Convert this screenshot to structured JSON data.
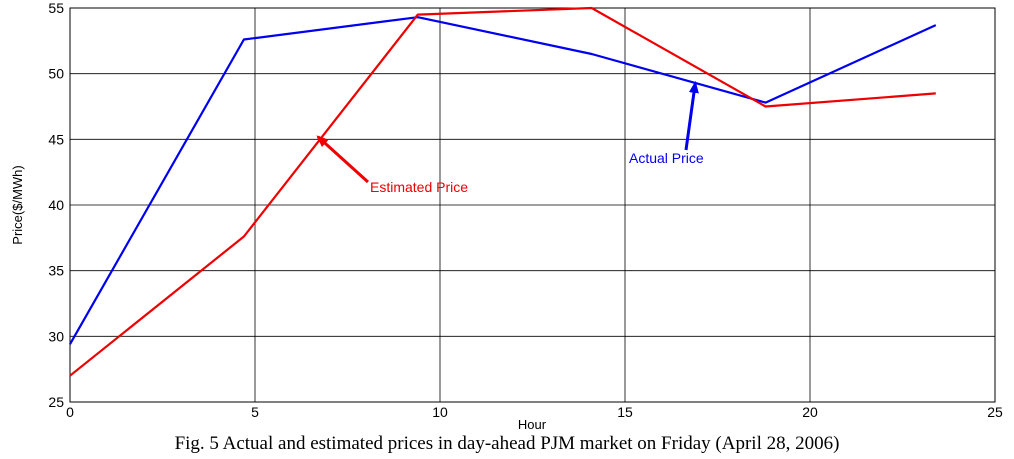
{
  "chart_data": {
    "type": "line",
    "xlabel": "Hour",
    "ylabel": "Price($/MWh)",
    "xlim": [
      0,
      25
    ],
    "ylim": [
      25,
      55
    ],
    "xticks": [
      0,
      5,
      10,
      15,
      20,
      25
    ],
    "yticks": [
      25,
      30,
      35,
      40,
      45,
      50,
      55
    ],
    "grid": true,
    "series": [
      {
        "name": "Actual Price",
        "color": "#0000ee",
        "points": [
          [
            0,
            29.4
          ],
          [
            4.7,
            52.6
          ],
          [
            9.4,
            54.3
          ],
          [
            14.1,
            51.5
          ],
          [
            18.8,
            47.8
          ],
          [
            23.4,
            53.7
          ]
        ]
      },
      {
        "name": "Estimated Price",
        "color": "#ee0000",
        "points": [
          [
            0,
            27.0
          ],
          [
            4.7,
            37.6
          ],
          [
            9.4,
            54.5
          ],
          [
            14.1,
            55.0
          ],
          [
            18.8,
            47.5
          ],
          [
            23.4,
            48.5
          ]
        ]
      }
    ],
    "annotations": [
      {
        "text": "Estimated Price",
        "color": "#ee0000",
        "series": "Estimated Price",
        "arrow_to": [
          6.7,
          45.2
        ]
      },
      {
        "text": "Actual Price",
        "color": "#0000ee",
        "series": "Actual Price",
        "arrow_to": [
          16.9,
          49.3
        ]
      }
    ]
  },
  "caption": "Fig. 5 Actual and estimated prices in day-ahead PJM market on Friday (April 28, 2006)"
}
